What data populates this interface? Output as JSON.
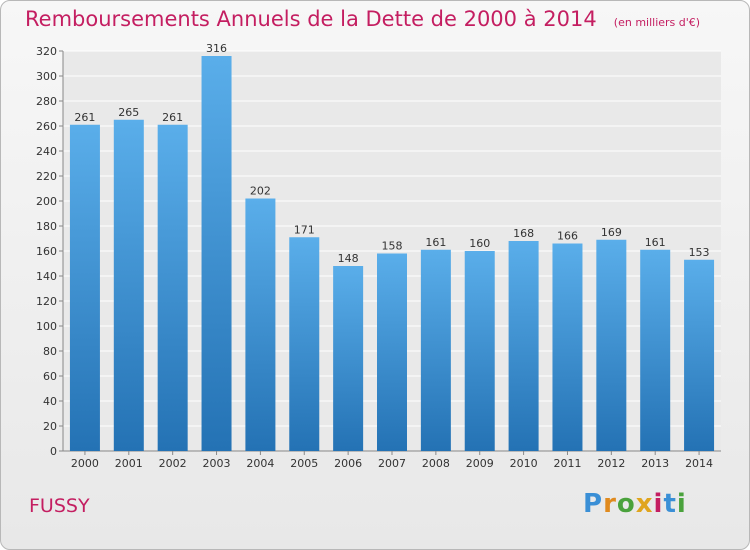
{
  "header": {
    "title": "Remboursements Annuels de la Dette de 2000 à 2014",
    "subtitle": "(en milliers d'€)"
  },
  "footer": {
    "place": "FUSSY",
    "logo_text": "Proxiti"
  },
  "colors": {
    "title": "#c41e61",
    "bar_top": "#5aaeea",
    "bar_bottom": "#2472b4",
    "logo": [
      "#3a8fd6",
      "#e08a1e",
      "#4aa23c",
      "#e0a51e",
      "#c41e61",
      "#3a8fd6",
      "#4aa23c"
    ]
  },
  "chart_data": {
    "type": "bar",
    "categories": [
      "2000",
      "2001",
      "2002",
      "2003",
      "2004",
      "2005",
      "2006",
      "2007",
      "2008",
      "2009",
      "2010",
      "2011",
      "2012",
      "2013",
      "2014"
    ],
    "values": [
      261,
      265,
      261,
      316,
      202,
      171,
      148,
      158,
      161,
      160,
      168,
      166,
      169,
      161,
      153
    ],
    "ylim": [
      0,
      320
    ],
    "yticks": [
      0,
      20,
      40,
      60,
      80,
      100,
      120,
      140,
      160,
      180,
      200,
      220,
      240,
      260,
      280,
      300,
      320
    ],
    "grid": true,
    "data_labels": true,
    "legend": "none"
  }
}
